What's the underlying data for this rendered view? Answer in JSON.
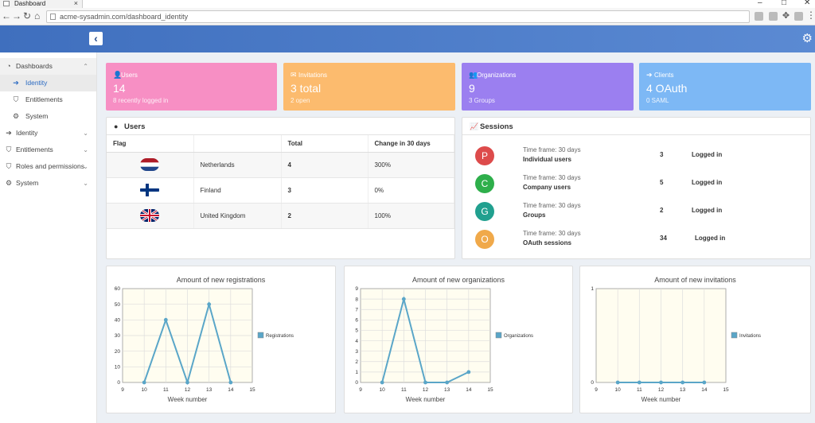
{
  "browser": {
    "tab_title": "Dashboard",
    "tab_close": "×",
    "url": "acme-sysadmin.com/dashboard_identity"
  },
  "sidebar": {
    "items": [
      {
        "label": "Dashboards",
        "icon": "dashboard-icon",
        "chevron": "^",
        "state": "open"
      },
      {
        "label": "Identity",
        "icon": "sign-in-icon",
        "state": "active"
      },
      {
        "label": "Entitlements",
        "icon": "shield-icon",
        "state": "sub"
      },
      {
        "label": "System",
        "icon": "cogs-icon",
        "state": "sub"
      },
      {
        "label": "Identity",
        "icon": "sign-in-icon",
        "chevron": "v"
      },
      {
        "label": "Entitlements",
        "icon": "shield-icon",
        "chevron": "v"
      },
      {
        "label": "Roles and permissions",
        "icon": "shield-icon",
        "chevron": "v"
      },
      {
        "label": "System",
        "icon": "cogs-icon",
        "chevron": "v"
      }
    ]
  },
  "cards": [
    {
      "title": "Users",
      "value": "14",
      "sub": "8 recently logged in",
      "color": "#f78fc4",
      "icon": "user-icon"
    },
    {
      "title": "Invitations",
      "value": "3 total",
      "sub": "2 open",
      "color": "#fcbb6e",
      "icon": "inbox-icon"
    },
    {
      "title": "Organizations",
      "value": "9",
      "sub": "3 Groups",
      "color": "#9b7ff0",
      "icon": "users-icon"
    },
    {
      "title": "Clients",
      "value": "4 OAuth",
      "sub": "0 SAML",
      "color": "#7db8f5",
      "icon": "sign-in-icon"
    }
  ],
  "users_panel": {
    "title": "Users",
    "columns": [
      "Flag",
      "",
      "Total",
      "Change in 30 days"
    ],
    "rows": [
      {
        "country": "Netherlands",
        "total": "4",
        "change": "300%"
      },
      {
        "country": "Finland",
        "total": "3",
        "change": "0%"
      },
      {
        "country": "United Kingdom",
        "total": "2",
        "change": "100%"
      }
    ]
  },
  "sessions_panel": {
    "title": "Sessions",
    "rows": [
      {
        "letter": "P",
        "color": "#dd4b4b",
        "timeframe": "Time frame: 30 days",
        "name": "Individual users",
        "count": "3",
        "status": "Logged in"
      },
      {
        "letter": "C",
        "color": "#2eaf4b",
        "timeframe": "Time frame: 30 days",
        "name": "Company users",
        "count": "5",
        "status": "Logged in"
      },
      {
        "letter": "G",
        "color": "#21a08f",
        "timeframe": "Time frame: 30 days",
        "name": "Groups",
        "count": "2",
        "status": "Logged in"
      },
      {
        "letter": "O",
        "color": "#f0a94a",
        "timeframe": "Time frame: 30 days",
        "name": "OAuth sessions",
        "count": "34",
        "status": "Logged in"
      }
    ]
  },
  "chart_data": [
    {
      "type": "line",
      "title": "Amount of new registrations",
      "xlabel": "Week number",
      "ylabel": "",
      "x": [
        10,
        11,
        12,
        13,
        14
      ],
      "series": [
        {
          "name": "Registrations",
          "values": [
            0,
            40,
            0,
            50,
            0
          ]
        }
      ],
      "xlim": [
        9,
        15
      ],
      "ylim": [
        0,
        60
      ],
      "xticks": [
        9,
        10,
        11,
        12,
        13,
        14,
        15
      ],
      "yticks": [
        0,
        10,
        20,
        30,
        40,
        50,
        60
      ],
      "grid": true,
      "legend": "right",
      "color": "#5aa6c8"
    },
    {
      "type": "line",
      "title": "Amount of new organizations",
      "xlabel": "Week number",
      "ylabel": "",
      "x": [
        10,
        11,
        12,
        13,
        14
      ],
      "series": [
        {
          "name": "Organizations",
          "values": [
            0,
            8,
            0,
            0,
            1
          ]
        }
      ],
      "xlim": [
        9,
        15
      ],
      "ylim": [
        0,
        9
      ],
      "xticks": [
        9,
        10,
        11,
        12,
        13,
        14,
        15
      ],
      "yticks": [
        0,
        1,
        2,
        3,
        4,
        5,
        6,
        7,
        8,
        9
      ],
      "grid": true,
      "legend": "right",
      "color": "#5aa6c8"
    },
    {
      "type": "line",
      "title": "Amount of new invitations",
      "xlabel": "Week number",
      "ylabel": "",
      "x": [
        10,
        11,
        12,
        13,
        14
      ],
      "series": [
        {
          "name": "Invitations",
          "values": [
            0,
            0,
            0,
            0,
            0
          ]
        }
      ],
      "xlim": [
        9,
        15
      ],
      "ylim": [
        0,
        1
      ],
      "xticks": [
        9,
        10,
        11,
        12,
        13,
        14,
        15
      ],
      "yticks": [
        0,
        1
      ],
      "grid": true,
      "legend": "right",
      "color": "#5aa6c8"
    }
  ]
}
